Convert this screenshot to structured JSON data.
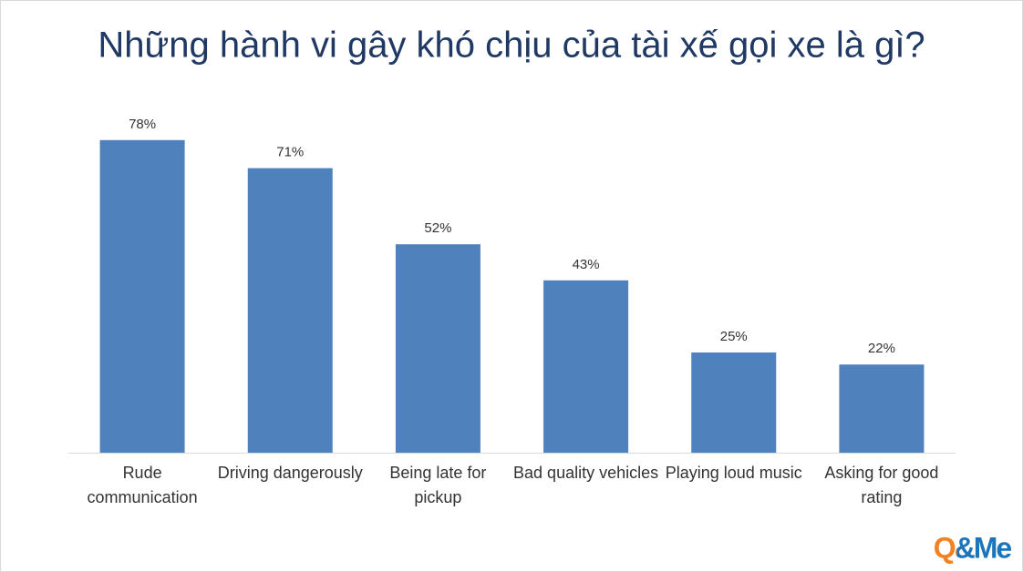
{
  "chart_data": {
    "type": "bar",
    "title": "Những hành vi gây khó chịu của tài xế gọi xe là gì?",
    "categories": [
      "Rude communication",
      "Driving dangerously",
      "Being late for pickup",
      "Bad quality vehicles",
      "Playing loud music",
      "Asking for good rating"
    ],
    "values": [
      78,
      71,
      52,
      43,
      25,
      22
    ],
    "value_labels": [
      "78%",
      "71%",
      "52%",
      "43%",
      "25%",
      "22%"
    ],
    "color": "#4f81bd"
  },
  "logo": "Q&Me"
}
